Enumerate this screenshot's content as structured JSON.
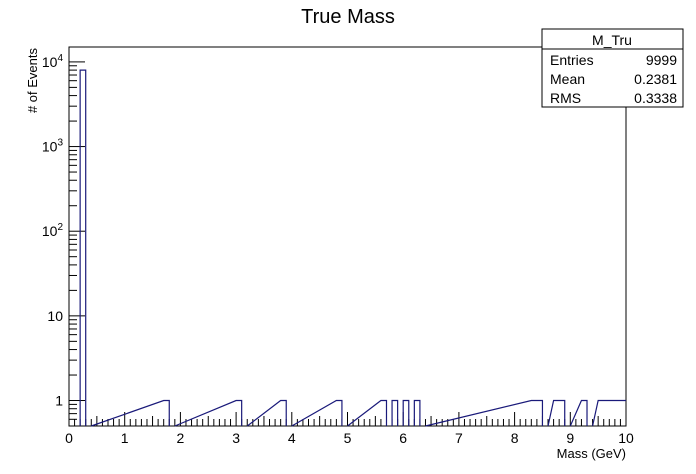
{
  "chart_data": {
    "type": "bar",
    "title": "True Mass",
    "xlabel": "Mass (GeV)",
    "ylabel": "# of Events",
    "xlim": [
      0,
      10
    ],
    "ylim": [
      0.5,
      15000
    ],
    "yscale": "log",
    "bin_width": 0.1,
    "line_color": "#1a1a7a",
    "x_ticks": [
      "0",
      "1",
      "2",
      "3",
      "4",
      "5",
      "6",
      "7",
      "8",
      "9",
      "10"
    ],
    "y_ticks": [
      {
        "value": 1,
        "label": "1",
        "sup": ""
      },
      {
        "value": 10,
        "label": "10",
        "sup": ""
      },
      {
        "value": 100,
        "label": "10",
        "sup": "2"
      },
      {
        "value": 1000,
        "label": "10",
        "sup": "3"
      },
      {
        "value": 10000,
        "label": "10",
        "sup": "4"
      }
    ],
    "bins": [
      {
        "x_low": 0.2,
        "value": 8000
      },
      {
        "x_low": 1.7,
        "value": 1
      },
      {
        "x_low": 3.0,
        "value": 1
      },
      {
        "x_low": 3.8,
        "value": 1
      },
      {
        "x_low": 4.8,
        "value": 1
      },
      {
        "x_low": 5.6,
        "value": 1
      },
      {
        "x_low": 5.8,
        "value": 1
      },
      {
        "x_low": 6.0,
        "value": 1
      },
      {
        "x_low": 6.2,
        "value": 1
      },
      {
        "x_low": 8.3,
        "value": 1
      },
      {
        "x_low": 8.4,
        "value": 1
      },
      {
        "x_low": 8.7,
        "value": 1
      },
      {
        "x_low": 8.8,
        "value": 1
      },
      {
        "x_low": 9.2,
        "value": 1
      },
      {
        "x_low": 9.5,
        "value": 1
      },
      {
        "x_low": 9.6,
        "value": 1
      },
      {
        "x_low": 9.7,
        "value": 1
      },
      {
        "x_low": 9.8,
        "value": 1
      },
      {
        "x_low": 9.9,
        "value": 1
      }
    ],
    "stats": {
      "name": "M_Tru",
      "rows": [
        {
          "label": "Entries",
          "value": "9999"
        },
        {
          "label": "Mean",
          "value": "0.2381"
        },
        {
          "label": "RMS",
          "value": "0.3338"
        }
      ]
    }
  }
}
